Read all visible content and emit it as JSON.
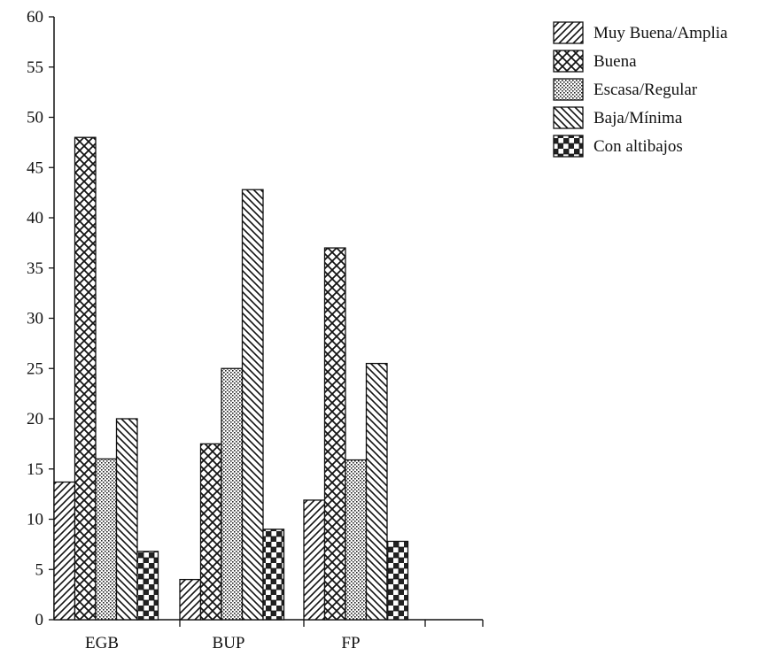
{
  "chart_data": {
    "type": "bar",
    "title": "",
    "xlabel": "",
    "ylabel": "",
    "categories": [
      "EGB",
      "BUP",
      "FP"
    ],
    "ylim": [
      0,
      60
    ],
    "yticks": [
      0,
      5,
      10,
      15,
      20,
      25,
      30,
      35,
      40,
      45,
      50,
      55,
      60
    ],
    "grid": false,
    "legend_position": "top-right",
    "series": [
      {
        "name": "Muy Buena/Amplia",
        "pattern": "diagonal-forward",
        "values": [
          13.7,
          4,
          11.9
        ]
      },
      {
        "name": "Buena",
        "pattern": "crosshatch",
        "values": [
          48,
          17.5,
          37
        ]
      },
      {
        "name": "Escasa/Regular",
        "pattern": "dots",
        "values": [
          16,
          25,
          15.9
        ]
      },
      {
        "name": "Baja/Mínima",
        "pattern": "diagonal-backward",
        "values": [
          20,
          42.8,
          25.5
        ]
      },
      {
        "name": "Con altibajos",
        "pattern": "checker",
        "values": [
          6.8,
          9,
          7.8
        ]
      }
    ],
    "colors": {
      "ink": "#111111",
      "background": "#ffffff"
    }
  }
}
